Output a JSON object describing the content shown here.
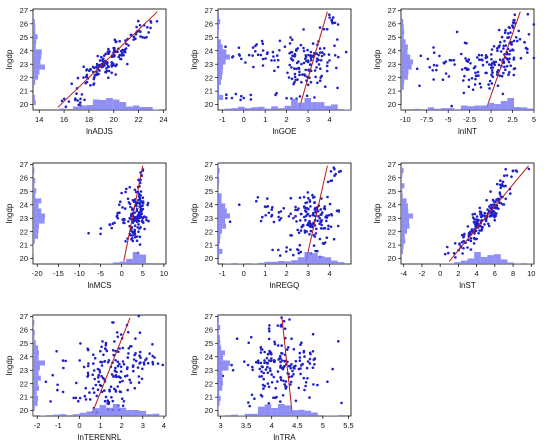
{
  "colors": {
    "points": "#2020c8",
    "fit_line": "#b81818",
    "histogram": "#7b7bf2",
    "frame": "#000000"
  },
  "chart_data": [
    {
      "type": "scatter",
      "xlabel": "lnADJS",
      "ylabel": "lngdp",
      "xlim": [
        13.5,
        24.2
      ],
      "ylim": [
        19.6,
        27.1
      ],
      "xticks": [
        14,
        16,
        18,
        20,
        22,
        24
      ],
      "yticks": [
        20,
        21,
        22,
        23,
        24,
        25,
        26,
        27
      ],
      "fit": {
        "x": [
          15.5,
          23.5
        ],
        "y": [
          19.8,
          26.9
        ]
      },
      "clusters": [
        {
          "cx": 19.5,
          "cy": 23.2,
          "sx": 1.2,
          "sy": 0.9,
          "n": 130,
          "corr": 0.82
        },
        {
          "cx": 22.3,
          "cy": 25.6,
          "sx": 0.6,
          "sy": 0.5,
          "n": 20,
          "corr": 0.8
        },
        {
          "cx": 16.8,
          "cy": 20.5,
          "sx": 0.6,
          "sy": 0.25,
          "n": 12,
          "corr": 0.5
        }
      ]
    },
    {
      "type": "scatter",
      "xlabel": "lnGOE",
      "ylabel": "lngdp",
      "xlim": [
        -1.2,
        5.0
      ],
      "ylim": [
        19.6,
        27.1
      ],
      "xticks": [
        -1,
        0,
        1,
        2,
        3,
        4
      ],
      "yticks": [
        20,
        21,
        22,
        23,
        24,
        25,
        26,
        27
      ],
      "fit": {
        "x": [
          2.6,
          3.9
        ],
        "y": [
          19.8,
          26.9
        ]
      },
      "clusters": [
        {
          "cx": 3.1,
          "cy": 23.0,
          "sx": 0.7,
          "sy": 1.0,
          "n": 110,
          "corr": 0.1
        },
        {
          "cx": 1.0,
          "cy": 23.7,
          "sx": 0.8,
          "sy": 0.5,
          "n": 40,
          "corr": 0.0
        },
        {
          "cx": 1.5,
          "cy": 20.6,
          "sx": 1.3,
          "sy": 0.15,
          "n": 18,
          "corr": 0.0
        },
        {
          "cx": 4.2,
          "cy": 26.3,
          "sx": 0.2,
          "sy": 0.4,
          "n": 12,
          "corr": 0.5
        }
      ]
    },
    {
      "type": "scatter",
      "xlabel": "lnINT",
      "ylabel": "lngdp",
      "xlim": [
        -10.5,
        5.0
      ],
      "ylim": [
        19.6,
        27.1
      ],
      "xticks": [
        -10.0,
        -7.5,
        -5.0,
        -2.5,
        0.0,
        2.5,
        5.0
      ],
      "yticks": [
        20,
        21,
        22,
        23,
        24,
        25,
        26,
        27
      ],
      "fit": {
        "x": [
          -0.5,
          3.4
        ],
        "y": [
          19.8,
          26.9
        ]
      },
      "clusters": [
        {
          "cx": 0.5,
          "cy": 23.0,
          "sx": 2.0,
          "sy": 1.1,
          "n": 130,
          "corr": 0.6
        },
        {
          "cx": -4.5,
          "cy": 23.0,
          "sx": 2.2,
          "sy": 0.8,
          "n": 40,
          "corr": 0.2
        },
        {
          "cx": 2.5,
          "cy": 25.8,
          "sx": 0.6,
          "sy": 0.6,
          "n": 15,
          "corr": 0.6
        }
      ]
    },
    {
      "type": "scatter",
      "xlabel": "lnMCS",
      "ylabel": "lngdp",
      "xlim": [
        -21.0,
        10.5
      ],
      "ylim": [
        19.6,
        27.1
      ],
      "xticks": [
        -20,
        -15,
        -10,
        -5,
        0,
        5,
        10
      ],
      "yticks": [
        20,
        21,
        22,
        23,
        24,
        25,
        26,
        27
      ],
      "fit": {
        "x": [
          0.5,
          5.0
        ],
        "y": [
          19.8,
          26.9
        ]
      },
      "clusters": [
        {
          "cx": 3.5,
          "cy": 23.0,
          "sx": 1.3,
          "sy": 1.1,
          "n": 130,
          "corr": 0.3
        },
        {
          "cx": -1.0,
          "cy": 23.0,
          "sx": 2.5,
          "sy": 0.8,
          "n": 25,
          "corr": 0.5
        },
        {
          "cx": 4.5,
          "cy": 26.1,
          "sx": 0.4,
          "sy": 0.4,
          "n": 12,
          "corr": 0.5
        }
      ]
    },
    {
      "type": "scatter",
      "xlabel": "lnREGQ",
      "ylabel": "lngdp",
      "xlim": [
        -1.2,
        5.0
      ],
      "ylim": [
        19.6,
        27.1
      ],
      "xticks": [
        -1,
        0,
        1,
        2,
        3,
        4
      ],
      "yticks": [
        20,
        21,
        22,
        23,
        24,
        25,
        26,
        27
      ],
      "fit": {
        "x": [
          2.9,
          3.9
        ],
        "y": [
          19.8,
          26.9
        ]
      },
      "clusters": [
        {
          "cx": 3.3,
          "cy": 23.0,
          "sx": 0.5,
          "sy": 1.0,
          "n": 120,
          "corr": 0.1
        },
        {
          "cx": 1.5,
          "cy": 23.5,
          "sx": 0.8,
          "sy": 0.5,
          "n": 30,
          "corr": 0.0
        },
        {
          "cx": 2.5,
          "cy": 20.6,
          "sx": 0.9,
          "sy": 0.2,
          "n": 15,
          "corr": 0.0
        },
        {
          "cx": 4.3,
          "cy": 26.3,
          "sx": 0.2,
          "sy": 0.4,
          "n": 10,
          "corr": 0.5
        }
      ]
    },
    {
      "type": "scatter",
      "xlabel": "lnST",
      "ylabel": "lngdp",
      "xlim": [
        -4.3,
        10.3
      ],
      "ylim": [
        19.6,
        27.1
      ],
      "xticks": [
        -4,
        -2,
        0,
        2,
        4,
        6,
        8,
        10
      ],
      "yticks": [
        20,
        21,
        22,
        23,
        24,
        25,
        26,
        27
      ],
      "fit": {
        "x": [
          1.0,
          9.7
        ],
        "y": [
          19.8,
          26.9
        ]
      },
      "clusters": [
        {
          "cx": 4.8,
          "cy": 23.0,
          "sx": 1.3,
          "sy": 1.0,
          "n": 150,
          "corr": 0.9
        },
        {
          "cx": 6.8,
          "cy": 25.7,
          "sx": 0.8,
          "sy": 0.6,
          "n": 20,
          "corr": 0.8
        },
        {
          "cx": 1.8,
          "cy": 20.6,
          "sx": 0.8,
          "sy": 0.4,
          "n": 15,
          "corr": 0.7
        }
      ]
    },
    {
      "type": "scatter",
      "xlabel": "lnTERENRL",
      "ylabel": "lngdp",
      "xlim": [
        -2.2,
        4.1
      ],
      "ylim": [
        19.6,
        27.1
      ],
      "xticks": [
        -2,
        -1,
        0,
        1,
        2,
        3,
        4
      ],
      "yticks": [
        20,
        21,
        22,
        23,
        24,
        25,
        26,
        27
      ],
      "fit": {
        "x": [
          0.6,
          2.4
        ],
        "y": [
          19.8,
          26.9
        ]
      },
      "clusters": [
        {
          "cx": 1.5,
          "cy": 23.0,
          "sx": 1.2,
          "sy": 1.2,
          "n": 160,
          "corr": 0.3
        },
        {
          "cx": 1.0,
          "cy": 20.6,
          "sx": 1.0,
          "sy": 0.3,
          "n": 15,
          "corr": 0.0
        },
        {
          "cx": 1.8,
          "cy": 26.0,
          "sx": 0.6,
          "sy": 0.5,
          "n": 12,
          "corr": 0.2
        }
      ]
    },
    {
      "type": "scatter",
      "xlabel": "lnTRA",
      "ylabel": "lngdp",
      "xlim": [
        2.95,
        5.55
      ],
      "ylim": [
        19.6,
        27.1
      ],
      "xticks": [
        3.0,
        3.5,
        4.0,
        4.5,
        5.0,
        5.5
      ],
      "yticks": [
        20,
        21,
        22,
        23,
        24,
        25,
        26,
        27
      ],
      "fit": {
        "x": [
          4.2,
          4.4
        ],
        "y": [
          26.9,
          19.8
        ]
      },
      "clusters": [
        {
          "cx": 4.2,
          "cy": 23.3,
          "sx": 0.45,
          "sy": 1.0,
          "n": 160,
          "corr": -0.1
        },
        {
          "cx": 4.1,
          "cy": 26.3,
          "sx": 0.15,
          "sy": 0.4,
          "n": 12,
          "corr": 0.0
        },
        {
          "cx": 3.8,
          "cy": 20.8,
          "sx": 0.3,
          "sy": 0.3,
          "n": 12,
          "corr": 0.0
        }
      ]
    }
  ]
}
